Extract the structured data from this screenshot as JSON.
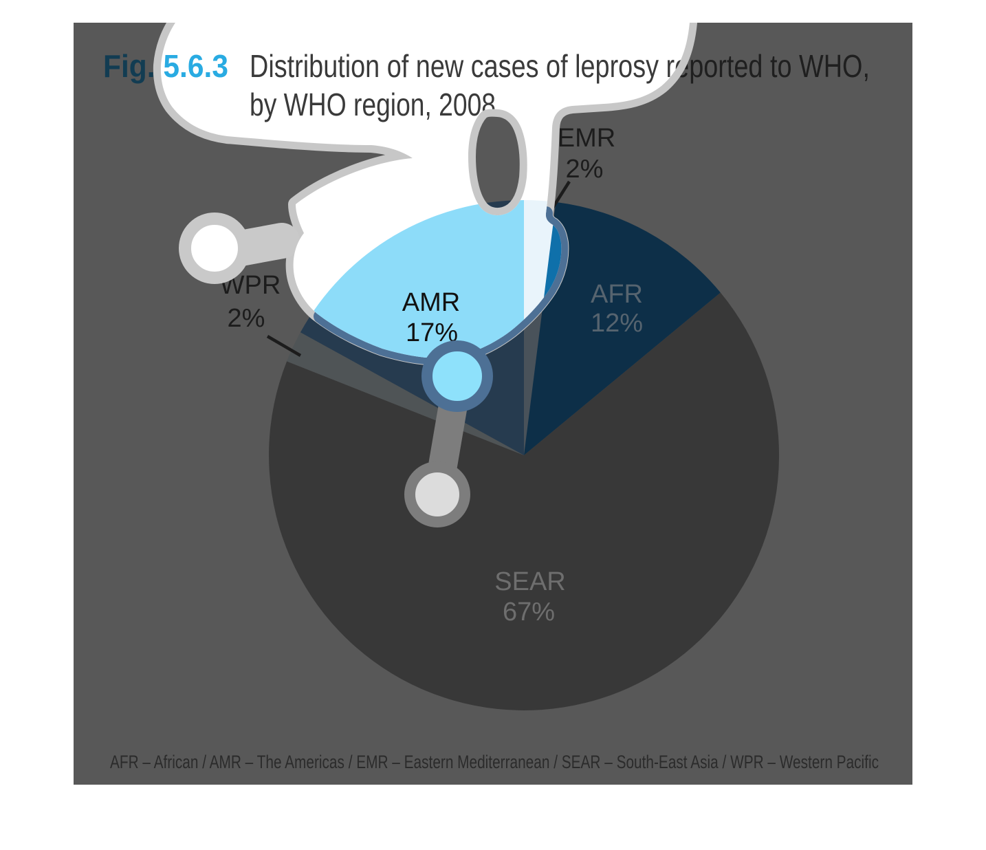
{
  "page": {
    "background": "#ffffff"
  },
  "figure": {
    "label": "Fig. 5.6.3",
    "title_line1": "Distribution of new cases of leprosy reported to WHO,",
    "title_line2": "by WHO region, 2008",
    "footnote": "AFR – African / AMR – The Americas / EMR – Eastern Mediterranean / SEAR – South-East Asia / WPR – Western Pacific",
    "label_color_bright": "#29abe2",
    "label_color_dim": "#123c52",
    "title_color_bright": "#3a3a3a",
    "title_color_dim": "#1f1f1f",
    "background_dim": "#585858",
    "background_bright": "#ffffff",
    "footnote_color_dim": "#2b2b2b",
    "footnote_color_bright": "#333333"
  },
  "chart_data": {
    "type": "pie",
    "title": "Distribution of new cases of leprosy reported to WHO, by WHO region, 2008",
    "categories": [
      "EMR",
      "AFR",
      "SEAR",
      "WPR",
      "AMR"
    ],
    "values": [
      2,
      12,
      67,
      2,
      17
    ],
    "unit": "%",
    "legend": {
      "AFR": "African",
      "AMR": "The Americas",
      "EMR": "Eastern Mediterranean",
      "SEAR": "South-East Asia",
      "WPR": "Western Pacific"
    },
    "slice_colors_bright": {
      "EMR": "#e9f4fb",
      "AFR": "#0f70aa",
      "SEAR": "#d9d9d9",
      "WPR": "#c3ccd2",
      "AMR": "#8ddcf9"
    },
    "slice_colors_dim": {
      "EMR": "#49525a",
      "AFR": "#0d2f48",
      "SEAR": "#383838",
      "WPR": "#4f5456",
      "AMR": "#263b4f"
    },
    "labels": [
      {
        "region": "EMR",
        "pct": "2%"
      },
      {
        "region": "AFR",
        "pct": "12%"
      },
      {
        "region": "AMR",
        "pct": "17%"
      },
      {
        "region": "SEAR",
        "pct": "67%"
      },
      {
        "region": "WPR",
        "pct": "2%"
      }
    ],
    "label_colors_dim": {
      "EMR": "#1c1c1c",
      "AFR": "#56646f",
      "AMR": "#141414",
      "SEAR": "#6e6e6e",
      "WPR": "#1c1c1c"
    },
    "label_colors_bright": {
      "EMR": "#1c1c1c",
      "AFR": "#ffffff",
      "AMR": "#111111",
      "SEAR": "#ffffff",
      "WPR": "#1c1c1c"
    }
  },
  "overlay": {
    "ring_color": "#c7c7c7",
    "ring_color_circle": "#c9c9c9",
    "ring_color_dark": "#7d7d7d",
    "ring_color_steel": "#4d7095",
    "dot_fill_cyan": "#8ee1fb",
    "dot_fill_gray": "#dcdcdc",
    "dot_fill_white": "#ffffff"
  }
}
